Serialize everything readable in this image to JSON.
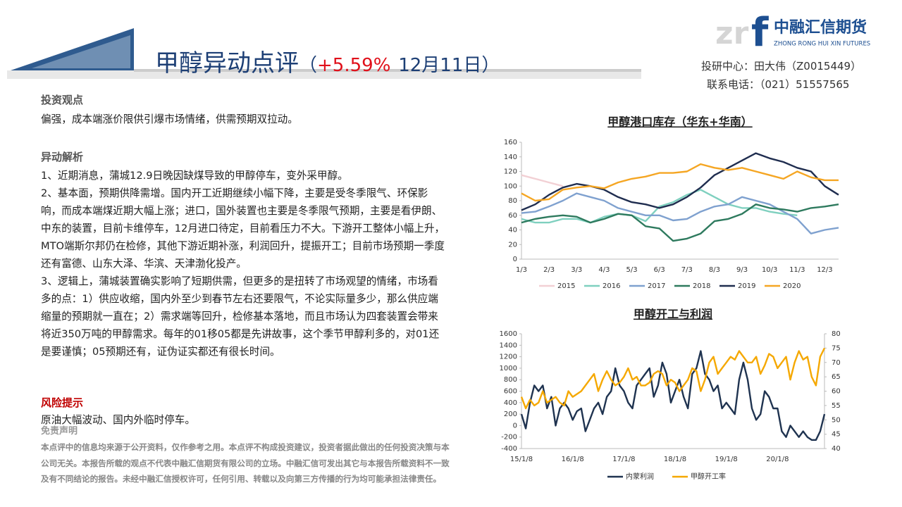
{
  "header": {
    "title": "甲醇异动点评",
    "paren_open": "（",
    "change": "+5.59%",
    "date": "12月11日",
    "paren_close": "）"
  },
  "logo": {
    "letters": "zr",
    "letter_f": "f",
    "name": "中融汇信期货",
    "pinyin": "ZHONG RONG HUI XIN FUTURES"
  },
  "contact": {
    "analyst": "投研中心：田大伟（Z0015449）",
    "phone": "联系电话：（021）51557565"
  },
  "view": {
    "heading": "投资观点",
    "text": "偏强，成本端涨价限供引爆市场情绪，供需预期双拉动。"
  },
  "analysis": {
    "heading": "异动解析",
    "items": [
      "1、近期消息，蒲城12.9日晚因缺煤导致的甲醇停车，变外采甲醇。",
      "2、基本面，预期供降需增。国内开工近期继续小幅下降，主要是受冬季限气、环保影响，而成本端煤近期大幅上涨；进口，国外装置也主要是冬季限气预期，主要是看伊朗、中东的装置，目前卡维停车，12月进口待定，目前看压力不大。下游开工整体小幅上升，MTO端斯尔邦仍在检修，其他下游近期补涨，利润回升，提振开工；目前市场预期一季度还有富德、山东大泽、华滨、天津渤化投产。",
      "3、逻辑上，蒲城装置确实影响了短期供需，但更多的是扭转了市场观望的情绪，市场看多的点：1）供应收缩，国内外至少到春节左右还要限气，不论实际量多少，那么供应端缩量的预期就一直在；2）需求端等回升，检修基本落地，而且市场认为四套装置会带来将近350万吨的甲醇需求。每年的01移05都是先讲故事，这个季节甲醇利多的，对01还是要谨慎；05预期还有，证伪证实都还有很长时间。"
    ]
  },
  "risk": {
    "heading": "风险提示",
    "text": "原油大幅波动、国内外临时停车。"
  },
  "disclaimer": {
    "heading": "免责声明",
    "text": "本点评中的信息均来源于公开资料，仅作参考之用。本点评不构成投资建议，投资者据此做出的任何投资决策与本公司无关。本报告所载的观点不代表中融汇信期货有限公司的立场。中融汇信可发出其它与本报告所载资料不一致及有不同结论的报告。未经中融汇信授权许可，任何引用、转载以及向第三方传播的行为均可能承担法律责任。"
  },
  "chart_data": [
    {
      "type": "line",
      "title": "甲醇港口库存（华东+华南）",
      "categories": [
        "1/3",
        null,
        "2/3",
        null,
        "3/3",
        null,
        "4/3",
        null,
        "5/3",
        null,
        "6/3",
        null,
        "7/3",
        null,
        "8/3",
        null,
        "9/3",
        null,
        "10/3",
        null,
        "11/3",
        null,
        "12/3",
        null
      ],
      "ylim": [
        0,
        160
      ],
      "yticks": [
        0,
        20,
        40,
        60,
        80,
        100,
        120,
        140,
        160
      ],
      "series": [
        {
          "name": "2015",
          "color": "#f2d0d4",
          "values": [
            115,
            110,
            105,
            100,
            null,
            null,
            null,
            null,
            null,
            null,
            null,
            null,
            null,
            null,
            null,
            null,
            null,
            null,
            null,
            null,
            null,
            null,
            null,
            null
          ]
        },
        {
          "name": "2016",
          "color": "#7fd0bf",
          "values": [
            55,
            50,
            50,
            55,
            55,
            50,
            58,
            62,
            60,
            52,
            72,
            78,
            88,
            95,
            85,
            75,
            70,
            70,
            65,
            62,
            60,
            null,
            null,
            null
          ]
        },
        {
          "name": "2017",
          "color": "#7fa1cf",
          "values": [
            63,
            65,
            72,
            80,
            90,
            85,
            80,
            70,
            65,
            60,
            60,
            53,
            55,
            65,
            72,
            75,
            85,
            80,
            75,
            65,
            55,
            35,
            40,
            43
          ]
        },
        {
          "name": "2018",
          "color": "#2e7a5e",
          "values": [
            50,
            55,
            58,
            60,
            58,
            50,
            55,
            62,
            60,
            45,
            42,
            25,
            28,
            35,
            52,
            55,
            62,
            75,
            70,
            68,
            65,
            70,
            72,
            75
          ]
        },
        {
          "name": "2019",
          "color": "#1f2d4f",
          "values": [
            67,
            75,
            88,
            98,
            103,
            100,
            95,
            85,
            78,
            75,
            70,
            75,
            85,
            98,
            115,
            125,
            135,
            145,
            138,
            133,
            125,
            120,
            100,
            88
          ]
        },
        {
          "name": "2020",
          "color": "#f5a623",
          "values": [
            90,
            80,
            82,
            95,
            98,
            100,
            97,
            105,
            110,
            113,
            118,
            118,
            120,
            130,
            125,
            122,
            125,
            120,
            115,
            110,
            120,
            112,
            108,
            108
          ]
        }
      ]
    },
    {
      "type": "line",
      "title": "甲醇开工与利润",
      "categories": [
        "15/1/8",
        null,
        null,
        null,
        null,
        null,
        null,
        null,
        null,
        null,
        null,
        null,
        "16/1/8",
        null,
        null,
        null,
        null,
        null,
        null,
        null,
        null,
        null,
        null,
        null,
        "17/1/8",
        null,
        null,
        null,
        null,
        null,
        null,
        null,
        null,
        null,
        null,
        null,
        "18/1/8",
        null,
        null,
        null,
        null,
        null,
        null,
        null,
        null,
        null,
        null,
        null,
        "19/1/8",
        null,
        null,
        null,
        null,
        null,
        null,
        null,
        null,
        null,
        null,
        null,
        "20/1/8",
        null,
        null,
        null,
        null,
        null,
        null,
        null,
        null,
        null,
        null,
        null
      ],
      "ylim": [
        -400,
        1600
      ],
      "yticks": [
        -400,
        -200,
        0,
        200,
        400,
        600,
        800,
        1000,
        1200,
        1400,
        1600
      ],
      "y2lim": [
        40,
        80
      ],
      "y2ticks": [
        40,
        45,
        50,
        55,
        60,
        65,
        70,
        75,
        80
      ],
      "series": [
        {
          "name": "内蒙利润",
          "color": "#1f3350",
          "values": [
            200,
            -50,
            400,
            700,
            600,
            700,
            300,
            500,
            0,
            300,
            400,
            300,
            100,
            250,
            300,
            -100,
            100,
            300,
            400,
            200,
            500,
            600,
            1000,
            700,
            600,
            400,
            300,
            700,
            800,
            900,
            1000,
            500,
            700,
            1100,
            900,
            400,
            600,
            800,
            500,
            300,
            900,
            1000,
            1300,
            900,
            800,
            600,
            700,
            300,
            400,
            300,
            200,
            800,
            1100,
            800,
            300,
            100,
            200,
            600,
            500,
            300,
            300,
            -100,
            -200,
            0,
            -100,
            -200,
            -100,
            -200,
            -250,
            -250,
            -100,
            200
          ]
        },
        {
          "name": "甲醇开工率",
          "color": "#f5a800",
          "axis": "y2",
          "values": [
            58,
            54,
            57,
            55,
            56,
            60,
            56,
            57,
            58,
            56,
            55,
            60,
            58,
            59,
            60,
            62,
            64,
            66,
            60,
            64,
            67,
            64,
            62,
            63,
            65,
            68,
            64,
            65,
            62,
            62,
            63,
            66,
            67,
            66,
            62,
            64,
            63,
            60,
            62,
            64,
            68,
            67,
            60,
            64,
            70,
            72,
            66,
            68,
            70,
            72,
            71,
            74,
            72,
            70,
            70,
            72,
            66,
            69,
            73,
            72,
            68,
            70,
            72,
            64,
            70,
            74,
            71,
            72,
            65,
            62,
            72,
            75
          ]
        }
      ]
    }
  ]
}
